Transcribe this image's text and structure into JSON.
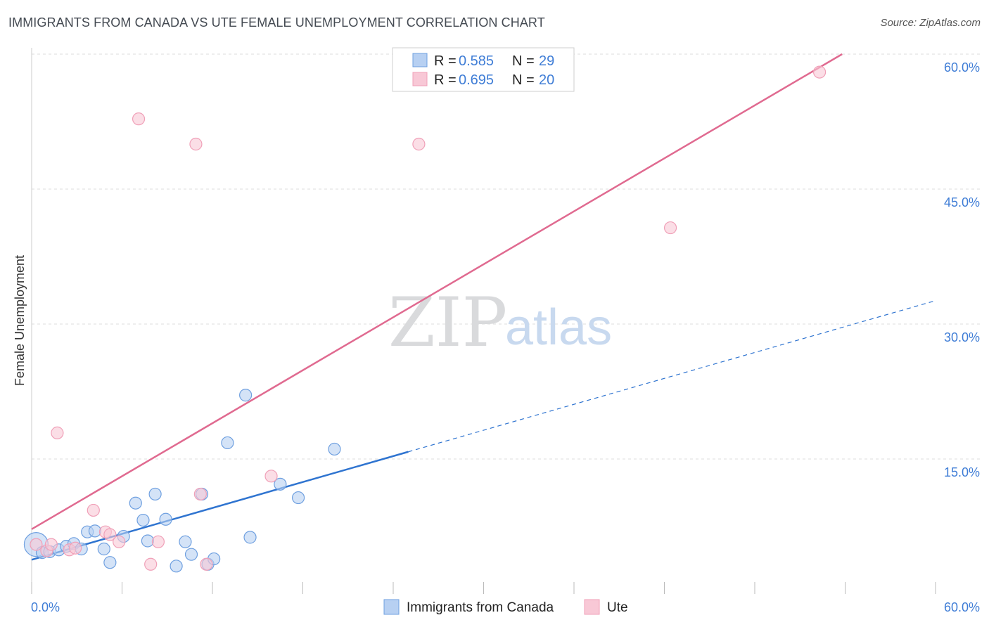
{
  "title": "IMMIGRANTS FROM CANADA VS UTE FEMALE UNEMPLOYMENT CORRELATION CHART",
  "source": "Source: ZipAtlas.com",
  "watermark": {
    "part1": "ZIP",
    "part2": "atlas"
  },
  "chart_data": {
    "type": "scatter",
    "title": "IMMIGRANTS FROM CANADA VS UTE FEMALE UNEMPLOYMENT CORRELATION CHART",
    "xlabel": "",
    "ylabel": "Female Unemployment",
    "xlim": [
      0,
      60
    ],
    "ylim": [
      0,
      60
    ],
    "x_tick_labels": {
      "min": "0.0%",
      "max": "60.0%"
    },
    "y_ticks": [
      15,
      30,
      45,
      60
    ],
    "y_tick_labels": [
      "15.0%",
      "30.0%",
      "45.0%",
      "60.0%"
    ],
    "grid": true,
    "legend_position": "top-center",
    "series": [
      {
        "name": "Immigrants from Canada",
        "color": "#6fa0e0",
        "fill": "#b7d0f2",
        "line_color": "#2f74d0",
        "R": "0.585",
        "N": "29",
        "trend": {
          "x0": 0,
          "y0": 3.8,
          "x1": 25,
          "y1": 15.8,
          "dashed_to_x": 60,
          "dashed_to_y": 32.6
        },
        "points": [
          {
            "x": 0.3,
            "y": 5.5,
            "big": true
          },
          {
            "x": 0.7,
            "y": 4.6
          },
          {
            "x": 1.2,
            "y": 4.7
          },
          {
            "x": 1.8,
            "y": 4.9
          },
          {
            "x": 2.3,
            "y": 5.3
          },
          {
            "x": 2.8,
            "y": 5.6
          },
          {
            "x": 3.3,
            "y": 5.0
          },
          {
            "x": 3.7,
            "y": 6.9
          },
          {
            "x": 4.2,
            "y": 7.0
          },
          {
            "x": 4.8,
            "y": 5.0
          },
          {
            "x": 5.2,
            "y": 3.5
          },
          {
            "x": 6.1,
            "y": 6.4
          },
          {
            "x": 6.9,
            "y": 10.1
          },
          {
            "x": 7.4,
            "y": 8.2
          },
          {
            "x": 7.7,
            "y": 5.9
          },
          {
            "x": 8.2,
            "y": 11.1
          },
          {
            "x": 8.9,
            "y": 8.3
          },
          {
            "x": 9.6,
            "y": 3.1
          },
          {
            "x": 10.2,
            "y": 5.8
          },
          {
            "x": 10.6,
            "y": 4.4
          },
          {
            "x": 11.3,
            "y": 11.1
          },
          {
            "x": 11.7,
            "y": 3.3
          },
          {
            "x": 12.1,
            "y": 3.9
          },
          {
            "x": 13.0,
            "y": 16.8
          },
          {
            "x": 14.2,
            "y": 22.1
          },
          {
            "x": 14.5,
            "y": 6.3
          },
          {
            "x": 16.5,
            "y": 12.2
          },
          {
            "x": 17.7,
            "y": 10.7
          },
          {
            "x": 20.1,
            "y": 16.1
          }
        ]
      },
      {
        "name": "Ute",
        "color": "#f0a0b8",
        "fill": "#f8c8d6",
        "line_color": "#e06a90",
        "R": "0.695",
        "N": "20",
        "trend": {
          "x0": 0,
          "y0": 7.2,
          "x1": 53.8,
          "y1": 60
        },
        "points": [
          {
            "x": 0.3,
            "y": 5.5
          },
          {
            "x": 1.0,
            "y": 4.8
          },
          {
            "x": 1.3,
            "y": 5.5
          },
          {
            "x": 1.7,
            "y": 17.9
          },
          {
            "x": 2.5,
            "y": 4.9
          },
          {
            "x": 2.9,
            "y": 5.1
          },
          {
            "x": 4.1,
            "y": 9.3
          },
          {
            "x": 4.9,
            "y": 6.9
          },
          {
            "x": 5.2,
            "y": 6.6
          },
          {
            "x": 5.8,
            "y": 5.8
          },
          {
            "x": 7.1,
            "y": 52.8
          },
          {
            "x": 7.9,
            "y": 3.3
          },
          {
            "x": 8.4,
            "y": 5.8
          },
          {
            "x": 10.9,
            "y": 50.0
          },
          {
            "x": 11.2,
            "y": 11.1
          },
          {
            "x": 11.6,
            "y": 3.3
          },
          {
            "x": 15.9,
            "y": 13.1
          },
          {
            "x": 25.7,
            "y": 50.0
          },
          {
            "x": 42.4,
            "y": 40.7
          },
          {
            "x": 52.3,
            "y": 58.0
          }
        ]
      }
    ]
  }
}
